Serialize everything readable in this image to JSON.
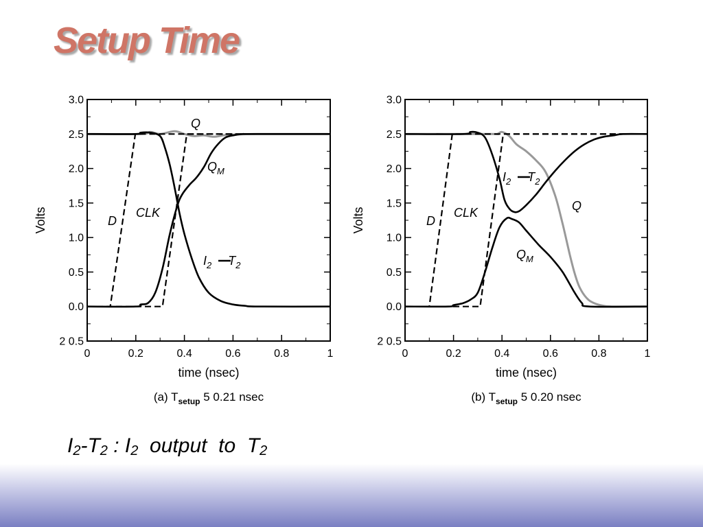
{
  "slide": {
    "title": "Setup Time",
    "footnote": {
      "parts": [
        "I",
        "2",
        "-T",
        "2",
        " : I",
        "2",
        "  output  to  T",
        "2"
      ]
    },
    "colors": {
      "title": "#cf7566",
      "curve": "#000000",
      "q_curve": "#999999",
      "band_bottom": "#7a7fc2"
    }
  },
  "chart_data": [
    {
      "type": "line",
      "panel": "a",
      "caption": {
        "prefix": "(a) T",
        "sub": "setup",
        "suffix": " 5  0.21 nsec"
      },
      "xlabel": "time (nsec)",
      "ylabel": "Volts",
      "xlim": [
        0,
        1
      ],
      "ylim": [
        -0.5,
        3.0
      ],
      "xticks": [
        "0",
        "0.2",
        "0.4",
        "0.6",
        "0.8",
        "1"
      ],
      "yticks": [
        "3.0",
        "2.5",
        "2.0",
        "1.5",
        "1.0",
        "0.5",
        "0.0",
        "2 0.5"
      ],
      "annotations": {
        "Q": "Q",
        "QM": "Q",
        "QM_sub": "M",
        "D": "D",
        "CLK": "CLK",
        "I2T2_a": "I",
        "I2T2_a_sub": "2",
        "I2T2_b": "T",
        "I2T2_b_sub": "2"
      },
      "series": [
        {
          "key": "D",
          "style": "dashed",
          "color": "#000000",
          "x": [
            0,
            0.095,
            0.198,
            1
          ],
          "y": [
            0,
            0,
            2.5,
            2.5
          ]
        },
        {
          "key": "CLK",
          "style": "dashed",
          "color": "#000000",
          "x": [
            0,
            0.31,
            0.41,
            1
          ],
          "y": [
            0,
            0,
            2.5,
            2.5
          ]
        },
        {
          "key": "Q",
          "style": "solid",
          "color": "#999999",
          "x": [
            0,
            0.22,
            0.26,
            0.3,
            0.36,
            0.4,
            0.44,
            0.48,
            0.52,
            0.56,
            0.6,
            0.7,
            1
          ],
          "y": [
            2.5,
            2.5,
            2.53,
            2.5,
            2.54,
            2.5,
            2.47,
            2.48,
            2.46,
            2.48,
            2.49,
            2.5,
            2.5
          ]
        },
        {
          "key": "QM",
          "style": "solid",
          "color": "#000000",
          "x": [
            0,
            0.2,
            0.22,
            0.25,
            0.28,
            0.31,
            0.34,
            0.37,
            0.39,
            0.42,
            0.45,
            0.48,
            0.51,
            0.54,
            0.57,
            0.6,
            0.64,
            0.68,
            1
          ],
          "y": [
            0,
            0,
            0.03,
            0.05,
            0.2,
            0.55,
            1.05,
            1.45,
            1.62,
            1.76,
            1.87,
            2.02,
            2.22,
            2.36,
            2.45,
            2.48,
            2.5,
            2.5,
            2.5
          ]
        },
        {
          "key": "I2T2",
          "style": "solid",
          "color": "#000000",
          "x": [
            0,
            0.2,
            0.22,
            0.26,
            0.3,
            0.32,
            0.34,
            0.36,
            0.38,
            0.4,
            0.43,
            0.46,
            0.5,
            0.55,
            0.6,
            0.65,
            0.7,
            1
          ],
          "y": [
            2.5,
            2.5,
            2.52,
            2.52,
            2.47,
            2.3,
            2.05,
            1.72,
            1.35,
            1.05,
            0.7,
            0.42,
            0.2,
            0.08,
            0.03,
            0.01,
            0,
            0
          ]
        }
      ]
    },
    {
      "type": "line",
      "panel": "b",
      "caption": {
        "prefix": "(b) T",
        "sub": "setup",
        "suffix": " 5  0.20 nsec"
      },
      "xlabel": "time (nsec)",
      "ylabel": "Volts",
      "xlim": [
        0,
        1
      ],
      "ylim": [
        -0.5,
        3.0
      ],
      "xticks": [
        "0",
        "0.2",
        "0.4",
        "0.6",
        "0.8",
        "1"
      ],
      "yticks": [
        "3.0",
        "2.5",
        "2.0",
        "1.5",
        "1.0",
        "0.5",
        "0.0",
        "2 0.5"
      ],
      "annotations": {
        "Q": "Q",
        "QM": "Q",
        "QM_sub": "M",
        "D": "D",
        "CLK": "CLK",
        "I2T2_a": "I",
        "I2T2_a_sub": "2",
        "I2T2_b": "T",
        "I2T2_b_sub": "2"
      },
      "series": [
        {
          "key": "D",
          "style": "dashed",
          "color": "#000000",
          "x": [
            0,
            0.1,
            0.195,
            1
          ],
          "y": [
            0,
            0,
            2.5,
            2.5
          ]
        },
        {
          "key": "CLK",
          "style": "dashed",
          "color": "#000000",
          "x": [
            0,
            0.31,
            0.405,
            1
          ],
          "y": [
            0,
            0,
            2.5,
            2.5
          ]
        },
        {
          "key": "Q",
          "style": "solid",
          "color": "#999999",
          "x": [
            0,
            0.35,
            0.38,
            0.4,
            0.43,
            0.46,
            0.5,
            0.54,
            0.58,
            0.62,
            0.65,
            0.68,
            0.7,
            0.72,
            0.75,
            0.78,
            0.82,
            0.86,
            1
          ],
          "y": [
            2.5,
            2.5,
            2.5,
            2.53,
            2.47,
            2.35,
            2.25,
            2.12,
            1.95,
            1.6,
            1.2,
            0.75,
            0.48,
            0.28,
            0.12,
            0.05,
            0.01,
            0,
            0
          ]
        },
        {
          "key": "QM",
          "style": "solid",
          "color": "#000000",
          "x": [
            0,
            0.18,
            0.2,
            0.24,
            0.27,
            0.3,
            0.33,
            0.36,
            0.39,
            0.42,
            0.44,
            0.47,
            0.5,
            0.55,
            0.6,
            0.65,
            0.7,
            0.73,
            0.76,
            1
          ],
          "y": [
            0,
            0,
            0.02,
            0.05,
            0.1,
            0.2,
            0.5,
            0.85,
            1.15,
            1.28,
            1.27,
            1.22,
            1.1,
            0.9,
            0.72,
            0.5,
            0.2,
            0.05,
            0,
            0
          ]
        },
        {
          "key": "I2T2",
          "style": "solid",
          "color": "#000000",
          "x": [
            0,
            0.24,
            0.27,
            0.3,
            0.33,
            0.36,
            0.39,
            0.41,
            0.43,
            0.45,
            0.47,
            0.5,
            0.54,
            0.58,
            0.62,
            0.66,
            0.7,
            0.74,
            0.78,
            0.82,
            0.86,
            0.9,
            1
          ],
          "y": [
            2.5,
            2.5,
            2.53,
            2.52,
            2.45,
            2.2,
            1.85,
            1.55,
            1.42,
            1.37,
            1.38,
            1.47,
            1.62,
            1.8,
            1.97,
            2.12,
            2.25,
            2.35,
            2.42,
            2.46,
            2.48,
            2.5,
            2.5
          ]
        }
      ]
    }
  ]
}
